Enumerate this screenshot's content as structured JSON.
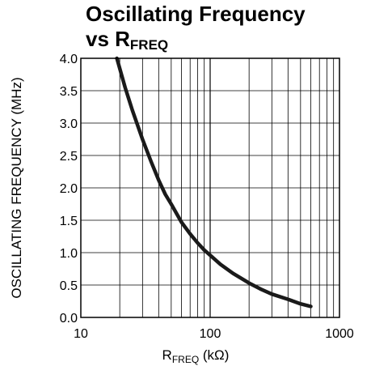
{
  "chart_data": {
    "type": "line",
    "title_line1": "Oscillating Frequency",
    "title_line2_prefix": "vs R",
    "title_line2_sub": "FREQ",
    "xlabel_prefix": "R",
    "xlabel_sub": "FREQ",
    "xlabel_suffix": " (kΩ)",
    "ylabel": "OSCILLATING FREQUENCY (MHz)",
    "xscale": "log",
    "xlim": [
      10,
      1000
    ],
    "ylim": [
      0,
      4
    ],
    "grid": true,
    "x_ticks": [
      10,
      100,
      1000
    ],
    "x_tick_labels": [
      "10",
      "100",
      "1000"
    ],
    "y_ticks": [
      0,
      0.5,
      1,
      1.5,
      2,
      2.5,
      3,
      3.5,
      4
    ],
    "y_tick_labels": [
      "0.0",
      "0.5",
      "1.0",
      "1.5",
      "2.0",
      "2.5",
      "3.0",
      "3.5",
      "4.0"
    ],
    "series": [
      {
        "x": [
          19,
          22,
          25,
          30,
          35,
          40,
          45,
          50,
          60,
          70,
          80,
          90,
          100,
          120,
          150,
          200,
          250,
          300,
          400,
          500,
          600
        ],
        "y": [
          4.0,
          3.55,
          3.2,
          2.75,
          2.4,
          2.12,
          1.9,
          1.75,
          1.47,
          1.29,
          1.15,
          1.04,
          0.96,
          0.82,
          0.68,
          0.53,
          0.43,
          0.36,
          0.28,
          0.21,
          0.17
        ]
      }
    ]
  }
}
